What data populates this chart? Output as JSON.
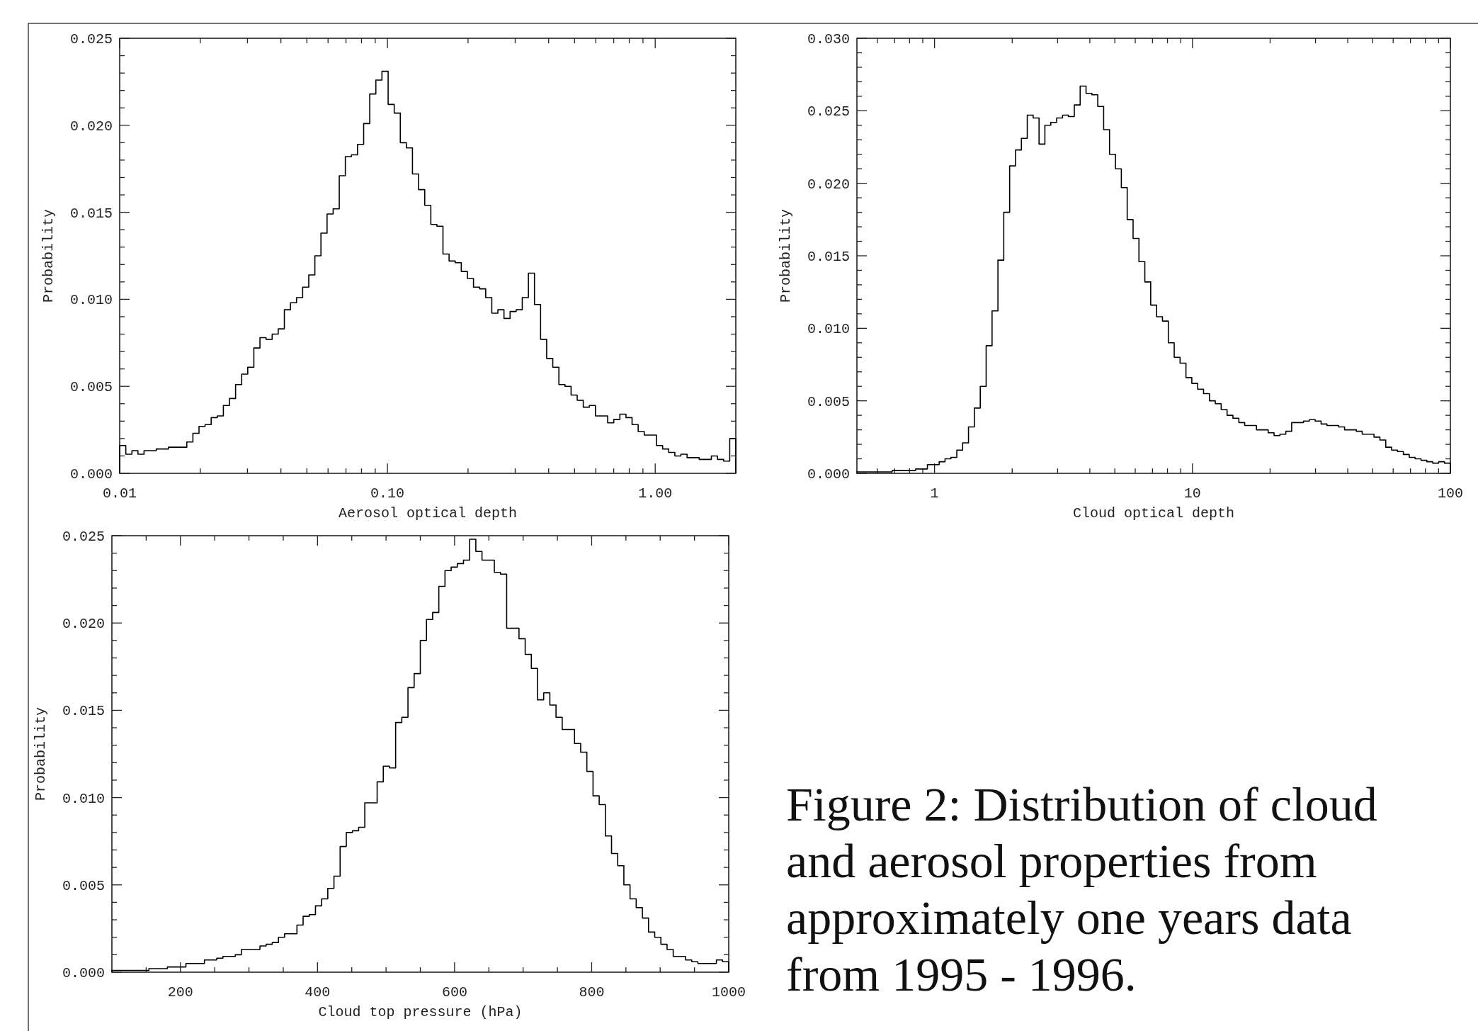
{
  "chart_data": [
    {
      "type": "histogram",
      "xlabel": "Aerosol optical depth",
      "ylabel": "Probability",
      "log": "x",
      "color": "#000000",
      "xlim": [
        0.01,
        2
      ],
      "ylim": [
        0,
        0.025
      ],
      "xticks": [
        {
          "value": 0.01,
          "label": "0.01"
        },
        {
          "value": 0.02,
          "label": null
        },
        {
          "value": 0.03,
          "label": null
        },
        {
          "value": 0.04,
          "label": null
        },
        {
          "value": 0.05,
          "label": null
        },
        {
          "value": 0.06,
          "label": null
        },
        {
          "value": 0.07,
          "label": null
        },
        {
          "value": 0.08,
          "label": null
        },
        {
          "value": 0.09,
          "label": null
        },
        {
          "value": 0.1,
          "label": "0.10"
        },
        {
          "value": 0.2,
          "label": null
        },
        {
          "value": 0.3,
          "label": null
        },
        {
          "value": 0.4,
          "label": null
        },
        {
          "value": 0.5,
          "label": null
        },
        {
          "value": 0.6,
          "label": null
        },
        {
          "value": 0.7,
          "label": null
        },
        {
          "value": 0.8,
          "label": null
        },
        {
          "value": 0.9,
          "label": null
        },
        {
          "value": 1,
          "label": "1.00"
        }
      ],
      "yticks": [
        {
          "value": 0,
          "label": "0.000"
        },
        {
          "value": 0.001,
          "label": null
        },
        {
          "value": 0.002,
          "label": null
        },
        {
          "value": 0.003,
          "label": null
        },
        {
          "value": 0.004,
          "label": null
        },
        {
          "value": 0.005,
          "label": "0.005"
        },
        {
          "value": 0.006,
          "label": null
        },
        {
          "value": 0.007,
          "label": null
        },
        {
          "value": 0.008,
          "label": null
        },
        {
          "value": 0.009,
          "label": null
        },
        {
          "value": 0.01,
          "label": "0.010"
        },
        {
          "value": 0.011,
          "label": null
        },
        {
          "value": 0.012,
          "label": null
        },
        {
          "value": 0.013,
          "label": null
        },
        {
          "value": 0.014,
          "label": null
        },
        {
          "value": 0.015,
          "label": "0.015"
        },
        {
          "value": 0.016,
          "label": null
        },
        {
          "value": 0.017,
          "label": null
        },
        {
          "value": 0.018,
          "label": null
        },
        {
          "value": 0.019,
          "label": null
        },
        {
          "value": 0.02,
          "label": "0.020"
        },
        {
          "value": 0.021,
          "label": null
        },
        {
          "value": 0.022,
          "label": null
        },
        {
          "value": 0.023,
          "label": null
        },
        {
          "value": 0.024,
          "label": null
        },
        {
          "value": 0.025,
          "label": "0.025"
        }
      ],
      "bins": [
        0.01,
        0.01054,
        0.01111,
        0.0117,
        0.01233,
        0.013,
        0.0137,
        0.01444,
        0.01521,
        0.01603,
        0.0169,
        0.01781,
        0.01877,
        0.01978,
        0.02084,
        0.02196,
        0.02315,
        0.02439,
        0.0257,
        0.02709,
        0.02855,
        0.03008,
        0.0317,
        0.03341,
        0.03521,
        0.03711,
        0.0391,
        0.04121,
        0.04343,
        0.04577,
        0.04823,
        0.05083,
        0.05357,
        0.05645,
        0.05949,
        0.0627,
        0.06607,
        0.06963,
        0.07338,
        0.07733,
        0.0815,
        0.08588,
        0.09051,
        0.09538,
        0.1006,
        0.106,
        0.1117,
        0.1177,
        0.124,
        0.1307,
        0.1378,
        0.1452,
        0.153,
        0.1612,
        0.1699,
        0.1791,
        0.1887,
        0.1989,
        0.2096,
        0.2209,
        0.2328,
        0.2453,
        0.2585,
        0.2724,
        0.2871,
        0.3025,
        0.3188,
        0.336,
        0.3541,
        0.3732,
        0.3933,
        0.4144,
        0.4368,
        0.4603,
        0.4851,
        0.5112,
        0.5387,
        0.5677,
        0.5983,
        0.6305,
        0.6645,
        0.7002,
        0.738,
        0.7777,
        0.8196,
        0.8637,
        0.9102,
        0.9592,
        1.011,
        1.066,
        1.123,
        1.184,
        1.247,
        1.315,
        1.385,
        1.46,
        1.539,
        1.621,
        1.709,
        1.801,
        1.898,
        2
      ],
      "values": [
        0.0016,
        0.0011,
        0.0013,
        0.0011,
        0.0013,
        0.0013,
        0.0014,
        0.0014,
        0.0015,
        0.0015,
        0.0015,
        0.0018,
        0.0023,
        0.0027,
        0.0028,
        0.0032,
        0.0033,
        0.0039,
        0.0043,
        0.0051,
        0.0057,
        0.0061,
        0.0072,
        0.0078,
        0.0077,
        0.008,
        0.0083,
        0.0094,
        0.0098,
        0.0101,
        0.0107,
        0.0114,
        0.0125,
        0.0138,
        0.0149,
        0.0152,
        0.0171,
        0.0182,
        0.0183,
        0.0189,
        0.0201,
        0.0218,
        0.0226,
        0.0231,
        0.0212,
        0.0207,
        0.019,
        0.0187,
        0.0172,
        0.0163,
        0.0154,
        0.0143,
        0.0142,
        0.0126,
        0.0122,
        0.0121,
        0.0116,
        0.0112,
        0.0107,
        0.0106,
        0.0101,
        0.0092,
        0.0094,
        0.0089,
        0.0093,
        0.0094,
        0.0101,
        0.0115,
        0.0097,
        0.0077,
        0.0066,
        0.0061,
        0.0051,
        0.005,
        0.0045,
        0.0042,
        0.0038,
        0.0039,
        0.0033,
        0.0033,
        0.0029,
        0.0031,
        0.0034,
        0.0032,
        0.0028,
        0.0024,
        0.0022,
        0.0022,
        0.0016,
        0.0014,
        0.0012,
        0.001,
        0.0011,
        0.0009,
        0.0009,
        0.0008,
        0.0008,
        0.001,
        0.0008,
        0.0007,
        0.002
      ]
    },
    {
      "type": "histogram",
      "xlabel": "Cloud optical depth",
      "ylabel": "Probability",
      "log": "x",
      "color": "#000000",
      "xlim": [
        0.5,
        100
      ],
      "ylim": [
        0,
        0.03
      ],
      "xticks": [
        {
          "value": 0.6,
          "label": null
        },
        {
          "value": 0.7,
          "label": null
        },
        {
          "value": 0.8,
          "label": null
        },
        {
          "value": 0.9,
          "label": null
        },
        1,
        {
          "value": 2,
          "label": null
        },
        {
          "value": 3,
          "label": null
        },
        {
          "value": 4,
          "label": null
        },
        {
          "value": 5,
          "label": null
        },
        {
          "value": 6,
          "label": null
        },
        {
          "value": 7,
          "label": null
        },
        {
          "value": 8,
          "label": null
        },
        {
          "value": 9,
          "label": null
        },
        10,
        {
          "value": 20,
          "label": null
        },
        {
          "value": 30,
          "label": null
        },
        {
          "value": 40,
          "label": null
        },
        {
          "value": 50,
          "label": null
        },
        {
          "value": 60,
          "label": null
        },
        {
          "value": 70,
          "label": null
        },
        {
          "value": 80,
          "label": null
        },
        {
          "value": 90,
          "label": null
        },
        100
      ],
      "yticks": [
        {
          "value": 0,
          "label": "0.000"
        },
        {
          "value": 0.001,
          "label": null
        },
        {
          "value": 0.002,
          "label": null
        },
        {
          "value": 0.003,
          "label": null
        },
        {
          "value": 0.004,
          "label": null
        },
        {
          "value": 0.005,
          "label": "0.005"
        },
        {
          "value": 0.006,
          "label": null
        },
        {
          "value": 0.007,
          "label": null
        },
        {
          "value": 0.008,
          "label": null
        },
        {
          "value": 0.009,
          "label": null
        },
        {
          "value": 0.01,
          "label": "0.010"
        },
        {
          "value": 0.011,
          "label": null
        },
        {
          "value": 0.012,
          "label": null
        },
        {
          "value": 0.013,
          "label": null
        },
        {
          "value": 0.014,
          "label": null
        },
        {
          "value": 0.015,
          "label": "0.015"
        },
        {
          "value": 0.016,
          "label": null
        },
        {
          "value": 0.017,
          "label": null
        },
        {
          "value": 0.018,
          "label": null
        },
        {
          "value": 0.019,
          "label": null
        },
        {
          "value": 0.02,
          "label": "0.020"
        },
        {
          "value": 0.021,
          "label": null
        },
        {
          "value": 0.022,
          "label": null
        },
        {
          "value": 0.023,
          "label": null
        },
        {
          "value": 0.024,
          "label": null
        },
        {
          "value": 0.025,
          "label": "0.025"
        },
        {
          "value": 0.026,
          "label": null
        },
        {
          "value": 0.027,
          "label": null
        },
        {
          "value": 0.028,
          "label": null
        },
        {
          "value": 0.029,
          "label": null
        },
        {
          "value": 0.03,
          "label": "0.030"
        }
      ],
      "bins": [
        0.5,
        0.527,
        0.5553,
        0.585,
        0.6167,
        0.6499,
        0.6849,
        0.7218,
        0.7607,
        0.8016,
        0.8448,
        0.8903,
        0.9383,
        0.9888,
        1.042,
        1.098,
        1.157,
        1.22,
        1.285,
        1.354,
        1.427,
        1.504,
        1.585,
        1.671,
        1.761,
        1.855,
        1.955,
        2.061,
        2.171,
        2.288,
        2.412,
        2.542,
        2.678,
        2.823,
        2.975,
        3.135,
        3.304,
        3.482,
        3.669,
        3.867,
        4.075,
        4.294,
        4.525,
        4.769,
        5.028,
        5.299,
        5.584,
        5.885,
        6.202,
        6.536,
        6.888,
        7.259,
        7.65,
        8.062,
        8.496,
        8.953,
        9.435,
        9.943,
        10.48,
        11.04,
        11.64,
        12.26,
        12.92,
        13.62,
        14.35,
        15.13,
        15.94,
        16.8,
        17.7,
        18.66,
        19.66,
        20.72,
        21.84,
        23.01,
        24.25,
        25.56,
        26.94,
        28.39,
        29.91,
        31.53,
        33.22,
        35.01,
        36.9,
        38.88,
        40.98,
        43.19,
        45.51,
        47.96,
        50.56,
        53.29,
        56.16,
        59.18,
        62.37,
        65.73,
        69.27,
        72.99,
        76.93,
        81.07,
        85.43,
        90.03,
        94.88,
        100
      ],
      "values": [
        0.0001,
        0.0001,
        0.0001,
        0.0001,
        0.0001,
        0.0001,
        0.0002,
        0.0002,
        0.0002,
        0.0002,
        0.0003,
        0.0003,
        0.0006,
        0.0006,
        0.0008,
        0.001,
        0.0011,
        0.0016,
        0.0021,
        0.0032,
        0.0045,
        0.006,
        0.0088,
        0.0112,
        0.0147,
        0.018,
        0.0212,
        0.0223,
        0.0231,
        0.0247,
        0.0245,
        0.0227,
        0.024,
        0.0242,
        0.0245,
        0.0247,
        0.0246,
        0.0254,
        0.0267,
        0.0262,
        0.0261,
        0.0253,
        0.0237,
        0.022,
        0.021,
        0.0197,
        0.0175,
        0.0162,
        0.0146,
        0.0132,
        0.0116,
        0.0108,
        0.0105,
        0.009,
        0.008,
        0.0076,
        0.0066,
        0.0062,
        0.0058,
        0.0055,
        0.005,
        0.0048,
        0.0044,
        0.004,
        0.0038,
        0.0035,
        0.0033,
        0.0033,
        0.003,
        0.003,
        0.0028,
        0.0026,
        0.0027,
        0.0029,
        0.0035,
        0.0035,
        0.0036,
        0.0037,
        0.0036,
        0.0034,
        0.0033,
        0.0033,
        0.0032,
        0.003,
        0.003,
        0.0029,
        0.0027,
        0.0027,
        0.0025,
        0.0023,
        0.0018,
        0.0016,
        0.0015,
        0.0013,
        0.0011,
        0.001,
        0.0009,
        0.0008,
        0.0007,
        0.0008,
        0.0007
      ]
    },
    {
      "type": "histogram",
      "xlabel": "Cloud top pressure (hPa)",
      "ylabel": "Probability",
      "color": "#000000",
      "xlim": [
        100,
        1000
      ],
      "ylim": [
        0,
        0.025
      ],
      "xticks": [
        {
          "value": 150,
          "label": null
        },
        200,
        {
          "value": 250,
          "label": null
        },
        {
          "value": 300,
          "label": null
        },
        {
          "value": 350,
          "label": null
        },
        400,
        {
          "value": 450,
          "label": null
        },
        {
          "value": 500,
          "label": null
        },
        {
          "value": 550,
          "label": null
        },
        600,
        {
          "value": 650,
          "label": null
        },
        {
          "value": 700,
          "label": null
        },
        {
          "value": 750,
          "label": null
        },
        800,
        {
          "value": 850,
          "label": null
        },
        {
          "value": 900,
          "label": null
        },
        {
          "value": 950,
          "label": null
        },
        1000
      ],
      "yticks": [
        {
          "value": 0,
          "label": "0.000"
        },
        {
          "value": 0.001,
          "label": null
        },
        {
          "value": 0.002,
          "label": null
        },
        {
          "value": 0.003,
          "label": null
        },
        {
          "value": 0.004,
          "label": null
        },
        {
          "value": 0.005,
          "label": "0.005"
        },
        {
          "value": 0.006,
          "label": null
        },
        {
          "value": 0.007,
          "label": null
        },
        {
          "value": 0.008,
          "label": null
        },
        {
          "value": 0.009,
          "label": null
        },
        {
          "value": 0.01,
          "label": "0.010"
        },
        {
          "value": 0.011,
          "label": null
        },
        {
          "value": 0.012,
          "label": null
        },
        {
          "value": 0.013,
          "label": null
        },
        {
          "value": 0.014,
          "label": null
        },
        {
          "value": 0.015,
          "label": "0.015"
        },
        {
          "value": 0.016,
          "label": null
        },
        {
          "value": 0.017,
          "label": null
        },
        {
          "value": 0.018,
          "label": null
        },
        {
          "value": 0.019,
          "label": null
        },
        {
          "value": 0.02,
          "label": "0.020"
        },
        {
          "value": 0.021,
          "label": null
        },
        {
          "value": 0.022,
          "label": null
        },
        {
          "value": 0.023,
          "label": null
        },
        {
          "value": 0.024,
          "label": null
        },
        {
          "value": 0.025,
          "label": "0.025"
        }
      ],
      "bins": [
        100,
        109,
        118,
        127,
        136,
        145,
        154,
        163,
        172,
        181,
        190,
        199,
        208,
        217,
        226,
        235,
        244,
        253,
        262,
        271,
        280,
        289,
        298,
        307,
        316,
        325,
        334,
        343,
        352,
        361,
        370,
        379,
        388,
        397,
        406,
        415,
        424,
        433,
        442,
        451,
        460,
        469,
        478,
        487,
        496,
        505,
        514,
        523,
        532,
        541,
        550,
        559,
        568,
        577,
        586,
        595,
        604,
        613,
        622,
        631,
        640,
        649,
        658,
        667,
        676,
        685,
        694,
        703,
        712,
        721,
        730,
        739,
        748,
        757,
        766,
        775,
        784,
        793,
        802,
        811,
        820,
        829,
        838,
        847,
        856,
        865,
        874,
        883,
        892,
        901,
        910,
        919,
        928,
        937,
        946,
        955,
        964,
        973,
        982,
        991,
        1000
      ],
      "values": [
        0.0001,
        0.0001,
        0.0001,
        0.0001,
        0.0001,
        0.0001,
        0.0002,
        0.0002,
        0.0002,
        0.0003,
        0.0003,
        0.0003,
        0.0005,
        0.0005,
        0.0005,
        0.0007,
        0.0007,
        0.0008,
        0.0009,
        0.0009,
        0.001,
        0.0013,
        0.0013,
        0.0013,
        0.0015,
        0.0016,
        0.0017,
        0.002,
        0.0022,
        0.0022,
        0.0027,
        0.0032,
        0.0033,
        0.0038,
        0.0042,
        0.0048,
        0.0055,
        0.0072,
        0.008,
        0.0081,
        0.0083,
        0.0097,
        0.0097,
        0.0109,
        0.0118,
        0.0117,
        0.0143,
        0.0146,
        0.0163,
        0.0171,
        0.019,
        0.0202,
        0.0206,
        0.0221,
        0.023,
        0.0232,
        0.0234,
        0.0236,
        0.0248,
        0.0241,
        0.0236,
        0.0236,
        0.0229,
        0.0228,
        0.0197,
        0.0197,
        0.0191,
        0.0182,
        0.0174,
        0.0156,
        0.016,
        0.0153,
        0.0146,
        0.0139,
        0.0139,
        0.0131,
        0.0126,
        0.0115,
        0.0101,
        0.0096,
        0.0078,
        0.0068,
        0.0061,
        0.005,
        0.0042,
        0.0037,
        0.0031,
        0.0023,
        0.002,
        0.0016,
        0.0013,
        0.0009,
        0.0009,
        0.0007,
        0.0006,
        0.0005,
        0.0005,
        0.0005,
        0.0007,
        0.0006
      ]
    },
    {
      "type": "other",
      "title": "Figure 2: Distribution of cloud and aerosol properties from approximately one years data from 1995 - 1996."
    }
  ]
}
